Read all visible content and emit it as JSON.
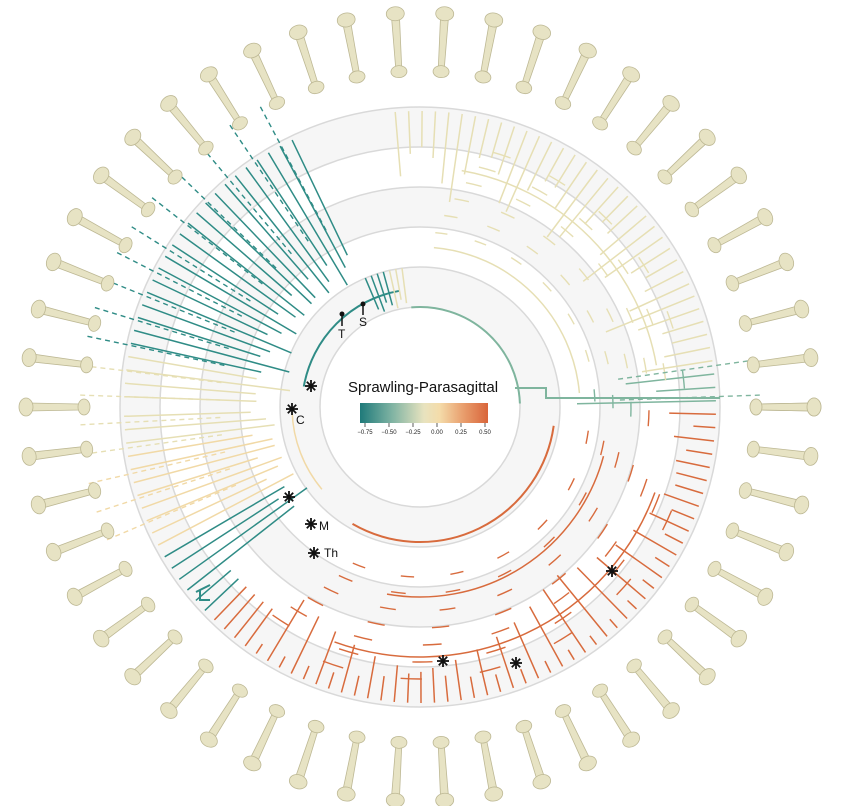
{
  "legend": {
    "title": "Sprawling-Parasagittal",
    "ticks": [
      "−0.75",
      "−0.50",
      "−0.25",
      "0.00",
      "0.25",
      "0.50"
    ],
    "gradient_colors": [
      "#1f7a7a",
      "#7fb3a3",
      "#e8e3bf",
      "#f4dcaa",
      "#e9a06f",
      "#d9653a"
    ]
  },
  "node_labels": {
    "T": "T",
    "S": "S",
    "C": "C",
    "M": "M",
    "Th": "Th"
  },
  "colors": {
    "background_ring": "#f3f3f3",
    "ring_line": "#d8d8d8",
    "bone": "#e7e3c4",
    "bone_stroke": "#bdb894",
    "teal": "#2f8c86",
    "green": "#7fb59e",
    "pale": "#e6dfb4",
    "cream": "#f1d9a6",
    "orange": "#d86b3d",
    "asterisk": "#111111"
  },
  "icons": {
    "marker": "asterisk-icon",
    "tip": "pin-icon",
    "bone": "humerus-bone-icon"
  }
}
